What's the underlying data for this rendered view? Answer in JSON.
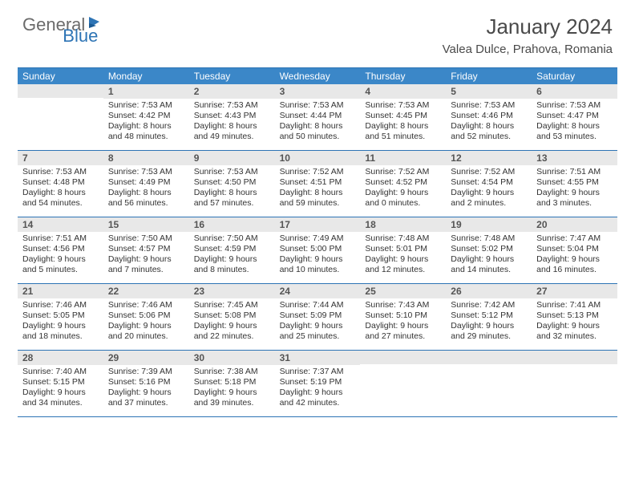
{
  "logo": {
    "general": "General",
    "blue": "Blue"
  },
  "title": "January 2024",
  "location": "Valea Dulce, Prahova, Romania",
  "colors": {
    "header_bg": "#3b87c8",
    "border": "#2d74b5",
    "num_bg": "#e8e8e8",
    "text": "#333333",
    "title_text": "#4a4a4a"
  },
  "day_names": [
    "Sunday",
    "Monday",
    "Tuesday",
    "Wednesday",
    "Thursday",
    "Friday",
    "Saturday"
  ],
  "weeks": [
    [
      {
        "num": "",
        "sunrise": "",
        "sunset": "",
        "daylight": ""
      },
      {
        "num": "1",
        "sunrise": "Sunrise: 7:53 AM",
        "sunset": "Sunset: 4:42 PM",
        "daylight": "Daylight: 8 hours and 48 minutes."
      },
      {
        "num": "2",
        "sunrise": "Sunrise: 7:53 AM",
        "sunset": "Sunset: 4:43 PM",
        "daylight": "Daylight: 8 hours and 49 minutes."
      },
      {
        "num": "3",
        "sunrise": "Sunrise: 7:53 AM",
        "sunset": "Sunset: 4:44 PM",
        "daylight": "Daylight: 8 hours and 50 minutes."
      },
      {
        "num": "4",
        "sunrise": "Sunrise: 7:53 AM",
        "sunset": "Sunset: 4:45 PM",
        "daylight": "Daylight: 8 hours and 51 minutes."
      },
      {
        "num": "5",
        "sunrise": "Sunrise: 7:53 AM",
        "sunset": "Sunset: 4:46 PM",
        "daylight": "Daylight: 8 hours and 52 minutes."
      },
      {
        "num": "6",
        "sunrise": "Sunrise: 7:53 AM",
        "sunset": "Sunset: 4:47 PM",
        "daylight": "Daylight: 8 hours and 53 minutes."
      }
    ],
    [
      {
        "num": "7",
        "sunrise": "Sunrise: 7:53 AM",
        "sunset": "Sunset: 4:48 PM",
        "daylight": "Daylight: 8 hours and 54 minutes."
      },
      {
        "num": "8",
        "sunrise": "Sunrise: 7:53 AM",
        "sunset": "Sunset: 4:49 PM",
        "daylight": "Daylight: 8 hours and 56 minutes."
      },
      {
        "num": "9",
        "sunrise": "Sunrise: 7:53 AM",
        "sunset": "Sunset: 4:50 PM",
        "daylight": "Daylight: 8 hours and 57 minutes."
      },
      {
        "num": "10",
        "sunrise": "Sunrise: 7:52 AM",
        "sunset": "Sunset: 4:51 PM",
        "daylight": "Daylight: 8 hours and 59 minutes."
      },
      {
        "num": "11",
        "sunrise": "Sunrise: 7:52 AM",
        "sunset": "Sunset: 4:52 PM",
        "daylight": "Daylight: 9 hours and 0 minutes."
      },
      {
        "num": "12",
        "sunrise": "Sunrise: 7:52 AM",
        "sunset": "Sunset: 4:54 PM",
        "daylight": "Daylight: 9 hours and 2 minutes."
      },
      {
        "num": "13",
        "sunrise": "Sunrise: 7:51 AM",
        "sunset": "Sunset: 4:55 PM",
        "daylight": "Daylight: 9 hours and 3 minutes."
      }
    ],
    [
      {
        "num": "14",
        "sunrise": "Sunrise: 7:51 AM",
        "sunset": "Sunset: 4:56 PM",
        "daylight": "Daylight: 9 hours and 5 minutes."
      },
      {
        "num": "15",
        "sunrise": "Sunrise: 7:50 AM",
        "sunset": "Sunset: 4:57 PM",
        "daylight": "Daylight: 9 hours and 7 minutes."
      },
      {
        "num": "16",
        "sunrise": "Sunrise: 7:50 AM",
        "sunset": "Sunset: 4:59 PM",
        "daylight": "Daylight: 9 hours and 8 minutes."
      },
      {
        "num": "17",
        "sunrise": "Sunrise: 7:49 AM",
        "sunset": "Sunset: 5:00 PM",
        "daylight": "Daylight: 9 hours and 10 minutes."
      },
      {
        "num": "18",
        "sunrise": "Sunrise: 7:48 AM",
        "sunset": "Sunset: 5:01 PM",
        "daylight": "Daylight: 9 hours and 12 minutes."
      },
      {
        "num": "19",
        "sunrise": "Sunrise: 7:48 AM",
        "sunset": "Sunset: 5:02 PM",
        "daylight": "Daylight: 9 hours and 14 minutes."
      },
      {
        "num": "20",
        "sunrise": "Sunrise: 7:47 AM",
        "sunset": "Sunset: 5:04 PM",
        "daylight": "Daylight: 9 hours and 16 minutes."
      }
    ],
    [
      {
        "num": "21",
        "sunrise": "Sunrise: 7:46 AM",
        "sunset": "Sunset: 5:05 PM",
        "daylight": "Daylight: 9 hours and 18 minutes."
      },
      {
        "num": "22",
        "sunrise": "Sunrise: 7:46 AM",
        "sunset": "Sunset: 5:06 PM",
        "daylight": "Daylight: 9 hours and 20 minutes."
      },
      {
        "num": "23",
        "sunrise": "Sunrise: 7:45 AM",
        "sunset": "Sunset: 5:08 PM",
        "daylight": "Daylight: 9 hours and 22 minutes."
      },
      {
        "num": "24",
        "sunrise": "Sunrise: 7:44 AM",
        "sunset": "Sunset: 5:09 PM",
        "daylight": "Daylight: 9 hours and 25 minutes."
      },
      {
        "num": "25",
        "sunrise": "Sunrise: 7:43 AM",
        "sunset": "Sunset: 5:10 PM",
        "daylight": "Daylight: 9 hours and 27 minutes."
      },
      {
        "num": "26",
        "sunrise": "Sunrise: 7:42 AM",
        "sunset": "Sunset: 5:12 PM",
        "daylight": "Daylight: 9 hours and 29 minutes."
      },
      {
        "num": "27",
        "sunrise": "Sunrise: 7:41 AM",
        "sunset": "Sunset: 5:13 PM",
        "daylight": "Daylight: 9 hours and 32 minutes."
      }
    ],
    [
      {
        "num": "28",
        "sunrise": "Sunrise: 7:40 AM",
        "sunset": "Sunset: 5:15 PM",
        "daylight": "Daylight: 9 hours and 34 minutes."
      },
      {
        "num": "29",
        "sunrise": "Sunrise: 7:39 AM",
        "sunset": "Sunset: 5:16 PM",
        "daylight": "Daylight: 9 hours and 37 minutes."
      },
      {
        "num": "30",
        "sunrise": "Sunrise: 7:38 AM",
        "sunset": "Sunset: 5:18 PM",
        "daylight": "Daylight: 9 hours and 39 minutes."
      },
      {
        "num": "31",
        "sunrise": "Sunrise: 7:37 AM",
        "sunset": "Sunset: 5:19 PM",
        "daylight": "Daylight: 9 hours and 42 minutes."
      },
      {
        "num": "",
        "sunrise": "",
        "sunset": "",
        "daylight": ""
      },
      {
        "num": "",
        "sunrise": "",
        "sunset": "",
        "daylight": ""
      },
      {
        "num": "",
        "sunrise": "",
        "sunset": "",
        "daylight": ""
      }
    ]
  ]
}
